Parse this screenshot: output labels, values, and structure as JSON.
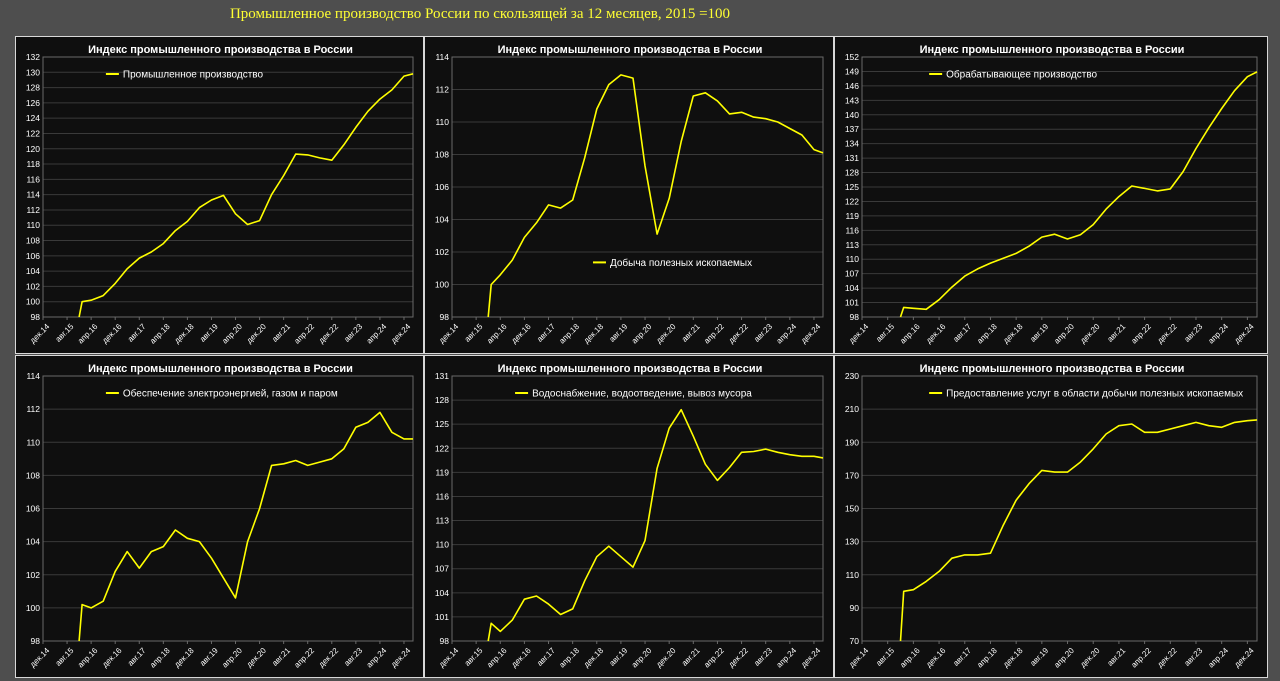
{
  "page": {
    "title": "Промышленное производство России по скользящей за 12 месяцев, 2015 =100",
    "line_color": "#ffff00",
    "background": "#0f0f0f"
  },
  "chart_data": [
    {
      "type": "line",
      "title": "Индекс промышленного производства в России",
      "legend": "Промышленное производство",
      "legend_position": "top-left",
      "y_ticks": [
        98,
        100,
        102,
        104,
        106,
        108,
        110,
        112,
        114,
        116,
        118,
        120,
        122,
        124,
        126,
        128,
        130,
        132
      ],
      "x_ticks": [
        "дек.14",
        "авг.15",
        "апр.16",
        "дек.16",
        "авг.17",
        "апр.18",
        "дек.18",
        "авг.19",
        "апр.20",
        "дек.20",
        "авг.21",
        "апр.22",
        "дек.22",
        "авг.23",
        "апр.24",
        "дек.24"
      ],
      "ylim": [
        98,
        132
      ],
      "x": [
        "дек.15",
        "янв.16",
        "апр.16",
        "авг.16",
        "дек.16",
        "апр.17",
        "авг.17",
        "дек.17",
        "апр.18",
        "авг.18",
        "дек.18",
        "апр.19",
        "авг.19",
        "дек.19",
        "апр.20",
        "авг.20",
        "дек.20",
        "апр.21",
        "авг.21",
        "дек.21",
        "апр.22",
        "авг.22",
        "дек.22",
        "апр.23",
        "авг.23",
        "дек.23",
        "апр.24",
        "авг.24",
        "дек.24",
        "мар.25"
      ],
      "values": [
        98.0,
        100.0,
        100.2,
        100.8,
        102.4,
        104.3,
        105.7,
        106.5,
        107.6,
        109.3,
        110.5,
        112.3,
        113.3,
        113.9,
        111.5,
        110.1,
        110.6,
        114.0,
        116.5,
        119.3,
        119.2,
        118.8,
        118.5,
        120.5,
        122.8,
        124.9,
        126.5,
        127.7,
        129.5,
        129.8
      ]
    },
    {
      "type": "line",
      "title": "Индекс промышленного производства в России",
      "legend": "Добыча полезных ископаемых",
      "legend_position": "center",
      "y_ticks": [
        98,
        100,
        102,
        104,
        106,
        108,
        110,
        112,
        114
      ],
      "x_ticks": [
        "дек.14",
        "авг.15",
        "апр.16",
        "дек.16",
        "авг.17",
        "апр.18",
        "дек.18",
        "авг.19",
        "апр.20",
        "дек.20",
        "авг.21",
        "апр.22",
        "дек.22",
        "авг.23",
        "апр.24",
        "дек.24"
      ],
      "ylim": [
        98,
        114
      ],
      "x": [
        "дек.15",
        "янв.16",
        "апр.16",
        "авг.16",
        "дек.16",
        "апр.17",
        "авг.17",
        "дек.17",
        "апр.18",
        "авг.18",
        "дек.18",
        "апр.19",
        "авг.19",
        "дек.19",
        "апр.20",
        "авг.20",
        "дек.20",
        "апр.21",
        "авг.21",
        "дек.21",
        "апр.22",
        "авг.22",
        "дек.22",
        "апр.23",
        "авг.23",
        "дек.23",
        "апр.24",
        "авг.24",
        "дек.24",
        "мар.25"
      ],
      "values": [
        98.0,
        100.0,
        100.6,
        101.5,
        102.9,
        103.8,
        104.9,
        104.7,
        105.2,
        107.8,
        110.8,
        112.3,
        112.9,
        112.7,
        107.3,
        103.1,
        105.3,
        108.8,
        111.6,
        111.8,
        111.3,
        110.5,
        110.6,
        110.3,
        110.2,
        110.0,
        109.6,
        109.2,
        108.3,
        108.1
      ]
    },
    {
      "type": "line",
      "title": "Индекс промышленного производства в России",
      "legend": "Обрабатывающее производство",
      "legend_position": "top-left",
      "y_ticks": [
        98,
        101,
        104,
        107,
        110,
        113,
        116,
        119,
        122,
        125,
        128,
        131,
        134,
        137,
        140,
        143,
        146,
        149,
        152
      ],
      "x_ticks": [
        "дек.14",
        "авг.15",
        "апр.16",
        "дек.16",
        "авг.17",
        "апр.18",
        "дек.18",
        "авг.19",
        "апр.20",
        "дек.20",
        "авг.21",
        "апр.22",
        "дек.22",
        "авг.23",
        "апр.24",
        "дек.24"
      ],
      "ylim": [
        98,
        152
      ],
      "x": [
        "дек.15",
        "янв.16",
        "апр.16",
        "авг.16",
        "дек.16",
        "апр.17",
        "авг.17",
        "дек.17",
        "апр.18",
        "авг.18",
        "дек.18",
        "апр.19",
        "авг.19",
        "дек.19",
        "апр.20",
        "авг.20",
        "дек.20",
        "апр.21",
        "авг.21",
        "дек.21",
        "апр.22",
        "авг.22",
        "дек.22",
        "апр.23",
        "авг.23",
        "дек.23",
        "апр.24",
        "авг.24",
        "дек.24",
        "мар.25"
      ],
      "values": [
        98.0,
        100.0,
        99.8,
        99.6,
        101.6,
        104.2,
        106.5,
        108.0,
        109.2,
        110.2,
        111.2,
        112.7,
        114.6,
        115.2,
        114.2,
        115.1,
        117.2,
        120.4,
        123.0,
        125.2,
        124.7,
        124.2,
        124.6,
        128.2,
        133.0,
        137.3,
        141.3,
        145.0,
        147.9,
        148.9
      ]
    },
    {
      "type": "line",
      "title": "Индекс промышленного производства в России",
      "legend": "Обеспечение электроэнергией, газом и паром",
      "legend_position": "top-left",
      "y_ticks": [
        98,
        100,
        102,
        104,
        106,
        108,
        110,
        112,
        114
      ],
      "x_ticks": [
        "дек.14",
        "авг.15",
        "апр.16",
        "дек.16",
        "авг.17",
        "апр.18",
        "дек.18",
        "авг.19",
        "апр.20",
        "дек.20",
        "авг.21",
        "апр.22",
        "дек.22",
        "авг.23",
        "апр.24",
        "дек.24"
      ],
      "ylim": [
        98,
        114
      ],
      "x": [
        "дек.15",
        "янв.16",
        "апр.16",
        "авг.16",
        "дек.16",
        "апр.17",
        "авг.17",
        "дек.17",
        "апр.18",
        "авг.18",
        "дек.18",
        "апр.19",
        "авг.19",
        "дек.19",
        "апр.20",
        "авг.20",
        "дек.20",
        "апр.21",
        "авг.21",
        "дек.21",
        "апр.22",
        "авг.22",
        "дек.22",
        "апр.23",
        "авг.23",
        "дек.23",
        "апр.24",
        "авг.24",
        "дек.24",
        "мар.25"
      ],
      "values": [
        98.0,
        100.2,
        100.0,
        100.4,
        102.2,
        103.4,
        102.4,
        103.4,
        103.7,
        104.7,
        104.2,
        104.0,
        103.0,
        101.8,
        100.6,
        104.0,
        106.0,
        108.6,
        108.7,
        108.9,
        108.6,
        108.8,
        109.0,
        109.6,
        110.9,
        111.2,
        111.8,
        110.6,
        110.2,
        110.2
      ]
    },
    {
      "type": "line",
      "title": "Индекс промышленного производства в России",
      "legend": "Водоснабжение, водоотведение, вывоз мусора",
      "legend_position": "top-left",
      "y_ticks": [
        98,
        101,
        104,
        107,
        110,
        113,
        116,
        119,
        122,
        125,
        128,
        131
      ],
      "x_ticks": [
        "дек.14",
        "авг.15",
        "апр.16",
        "дек.16",
        "авг.17",
        "апр.18",
        "дек.18",
        "авг.19",
        "апр.20",
        "дек.20",
        "авг.21",
        "апр.22",
        "дек.22",
        "авг.23",
        "апр.24",
        "дек.24"
      ],
      "ylim": [
        98,
        131
      ],
      "x": [
        "дек.15",
        "янв.16",
        "апр.16",
        "авг.16",
        "дек.16",
        "апр.17",
        "авг.17",
        "дек.17",
        "апр.18",
        "авг.18",
        "дек.18",
        "апр.19",
        "авг.19",
        "дек.19",
        "апр.20",
        "авг.20",
        "дек.20",
        "апр.21",
        "авг.21",
        "дек.21",
        "апр.22",
        "авг.22",
        "дек.22",
        "апр.23",
        "авг.23",
        "дек.23",
        "апр.24",
        "авг.24",
        "дек.24",
        "мар.25"
      ],
      "values": [
        98.0,
        100.2,
        99.2,
        100.6,
        103.2,
        103.6,
        102.6,
        101.3,
        102.0,
        105.5,
        108.5,
        109.8,
        108.5,
        107.2,
        110.5,
        119.5,
        124.5,
        126.8,
        123.5,
        120.0,
        118.0,
        119.6,
        121.5,
        121.6,
        121.9,
        121.5,
        121.2,
        121.0,
        121.0,
        120.8
      ]
    },
    {
      "type": "line",
      "title": "Индекс промышленного производства в России",
      "legend": "Предоставление услуг в области добычи полезных ископаемых",
      "legend_position": "top-left",
      "y_ticks": [
        70,
        90,
        110,
        130,
        150,
        170,
        190,
        210,
        230
      ],
      "x_ticks": [
        "дек.14",
        "авг.15",
        "апр.16",
        "дек.16",
        "авг.17",
        "апр.18",
        "дек.18",
        "авг.19",
        "апр.20",
        "дек.20",
        "авг.21",
        "апр.22",
        "дек.22",
        "авг.23",
        "апр.24",
        "дек.24"
      ],
      "ylim": [
        70,
        230
      ],
      "x": [
        "дек.15",
        "янв.16",
        "апр.16",
        "авг.16",
        "дек.16",
        "апр.17",
        "авг.17",
        "дек.17",
        "апр.18",
        "авг.18",
        "дек.18",
        "апр.19",
        "авг.19",
        "дек.19",
        "апр.20",
        "авг.20",
        "дек.20",
        "апр.21",
        "авг.21",
        "дек.21",
        "апр.22",
        "авг.22",
        "дек.22",
        "апр.23",
        "авг.23",
        "дек.23",
        "апр.24",
        "авг.24",
        "дек.24",
        "мар.25"
      ],
      "values": [
        70.0,
        100.0,
        101.0,
        106.0,
        112.0,
        120.0,
        122.0,
        122.0,
        123.0,
        140.0,
        155.0,
        165.0,
        173.0,
        172.0,
        172.0,
        178.0,
        186.0,
        195.0,
        200.0,
        201.0,
        196.0,
        196.0,
        198.0,
        200.0,
        202.0,
        200.0,
        199.0,
        202.0,
        203.0,
        203.5
      ]
    }
  ]
}
